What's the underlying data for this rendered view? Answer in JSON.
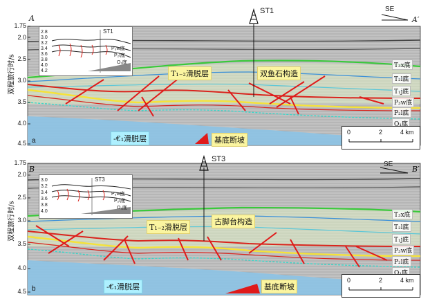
{
  "panels": [
    {
      "panel_letter": "a",
      "corner_left": "A",
      "corner_right": "A′",
      "well": "ST1",
      "direction": "SE",
      "y_ticks": [
        "1.75",
        "2.0",
        "2.5",
        "3.0",
        "3.5",
        "4.0",
        "4.5"
      ],
      "inset_well": "ST1",
      "inset_ticks": [
        "2.8",
        "3.0",
        "3.2",
        "3.4",
        "3.6",
        "3.8",
        "4.0",
        "4.2"
      ],
      "inset_labels": [
        "P₃w底",
        "P₂l底",
        "O₁底"
      ],
      "horizons": [
        "T₃x底",
        "T₂l底",
        "T₁j底",
        "P₃w底",
        "P₂l底",
        "O₁底"
      ],
      "tags": {
        "detach_t": "T₁₋₂滑脱层",
        "structure": "双鱼石构造",
        "detach_cambrian": "-€₁滑脱层",
        "basement": "基底断坡"
      },
      "scale": [
        "0",
        "2",
        "4 km"
      ]
    },
    {
      "panel_letter": "b",
      "corner_left": "B",
      "corner_right": "B′",
      "well": "ST3",
      "direction": "SE",
      "y_ticks": [
        "1.75",
        "2.0",
        "2.5",
        "3.0",
        "3.5",
        "4.0",
        "4.5"
      ],
      "inset_well": "ST3",
      "inset_ticks": [
        "3.0",
        "3.2",
        "3.4",
        "3.6",
        "3.8",
        "4.0"
      ],
      "inset_labels": [
        "P₃w底",
        "P₂l底",
        "O₁底"
      ],
      "horizons": [
        "T₃x底",
        "T₂l底",
        "T₁j底",
        "P₃w底",
        "P₂l底",
        "O₁底"
      ],
      "tags": {
        "detach_t": "T₁₋₂滑脱层",
        "structure": "古脚台构造",
        "detach_cambrian": "-€₁滑脱层",
        "basement": "基底断坡"
      },
      "scale": [
        "0",
        "2",
        "4 km"
      ]
    }
  ],
  "y_axis_label": "双程旅行时/s",
  "colors": {
    "seismic_bg": "#bcbcbc",
    "t3x_green": "#39c93a",
    "t2l_blue": "#3a8fd8",
    "t1j_cyan": "#5dc7d8",
    "p3w_red": "#d9241d",
    "p2l_yellow": "#f5e23a",
    "o1_cyan": "#3ad6c9",
    "cambrian_blue": "#8cc3e6",
    "fault_red": "#e01a1a"
  },
  "icons": [
    "derrick-icon",
    "arrow-se-icon",
    "ramp-triangle-icon"
  ]
}
